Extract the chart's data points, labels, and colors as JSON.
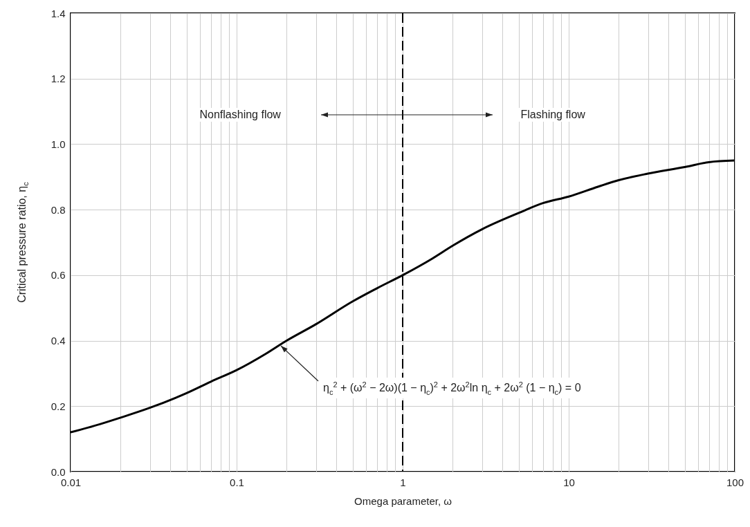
{
  "chart_data": {
    "type": "line",
    "xlabel": "Omega parameter, ω",
    "ylabel": "Critical pressure ratio, η$_{c}$",
    "x": [
      0.01,
      0.015,
      0.02,
      0.03,
      0.05,
      0.07,
      0.1,
      0.15,
      0.2,
      0.3,
      0.5,
      0.7,
      1,
      1.5,
      2,
      3,
      5,
      7,
      10,
      15,
      20,
      30,
      50,
      70,
      100
    ],
    "series": [
      {
        "color": "#000000",
        "values": [
          0.12,
          0.145,
          0.165,
          0.195,
          0.24,
          0.275,
          0.31,
          0.36,
          0.4,
          0.45,
          0.52,
          0.56,
          0.6,
          0.65,
          0.69,
          0.74,
          0.79,
          0.82,
          0.84,
          0.87,
          0.89,
          0.91,
          0.93,
          0.945,
          0.95
        ]
      }
    ],
    "xlim": [
      0.01,
      100
    ],
    "xticks": [
      0.01,
      {
        "value": 0.02,
        "label": null
      },
      {
        "value": 0.03,
        "label": null
      },
      {
        "value": 0.04,
        "label": null
      },
      {
        "value": 0.05,
        "label": null
      },
      {
        "value": 0.06,
        "label": null
      },
      {
        "value": 0.07,
        "label": null
      },
      {
        "value": 0.08,
        "label": null
      },
      {
        "value": 0.09,
        "label": null
      },
      0.1,
      {
        "value": 0.2,
        "label": null
      },
      {
        "value": 0.3,
        "label": null
      },
      {
        "value": 0.4,
        "label": null
      },
      {
        "value": 0.5,
        "label": null
      },
      {
        "value": 0.6,
        "label": null
      },
      {
        "value": 0.7,
        "label": null
      },
      {
        "value": 0.8,
        "label": null
      },
      {
        "value": 0.9,
        "label": null
      },
      1,
      {
        "value": 2,
        "label": null
      },
      {
        "value": 3,
        "label": null
      },
      {
        "value": 4,
        "label": null
      },
      {
        "value": 5,
        "label": null
      },
      {
        "value": 6,
        "label": null
      },
      {
        "value": 7,
        "label": null
      },
      {
        "value": 8,
        "label": null
      },
      {
        "value": 9,
        "label": null
      },
      10,
      {
        "value": 20,
        "label": null
      },
      {
        "value": 30,
        "label": null
      },
      {
        "value": 40,
        "label": null
      },
      {
        "value": 50,
        "label": null
      },
      {
        "value": 60,
        "label": null
      },
      {
        "value": 70,
        "label": null
      },
      {
        "value": 80,
        "label": null
      },
      {
        "value": 90,
        "label": null
      },
      100
    ],
    "ylim": [
      0,
      1.4
    ],
    "yticks": [
      {
        "value": 0,
        "label": "0.0"
      },
      0.2,
      0.4,
      0.6,
      0.8,
      {
        "value": 1,
        "label": "1.0"
      },
      1.2,
      1.4
    ],
    "log": "x",
    "grid": true,
    "ref_lines": [
      {
        "axis": "x",
        "value": 1,
        "line_style": "dashed",
        "color": "#000000"
      }
    ],
    "annotations": [
      "Nonflashing flow",
      "Flashing flow",
      "η$_{c}$$^{2}$ + (ω$^{2}$ − 2ω)(1 − η$_{c}$)$^{2}$ + 2ω$^{2}$ln η$_{c}$ + 2ω$^{2}$ (1 − η$_{c}$) = 0"
    ]
  }
}
